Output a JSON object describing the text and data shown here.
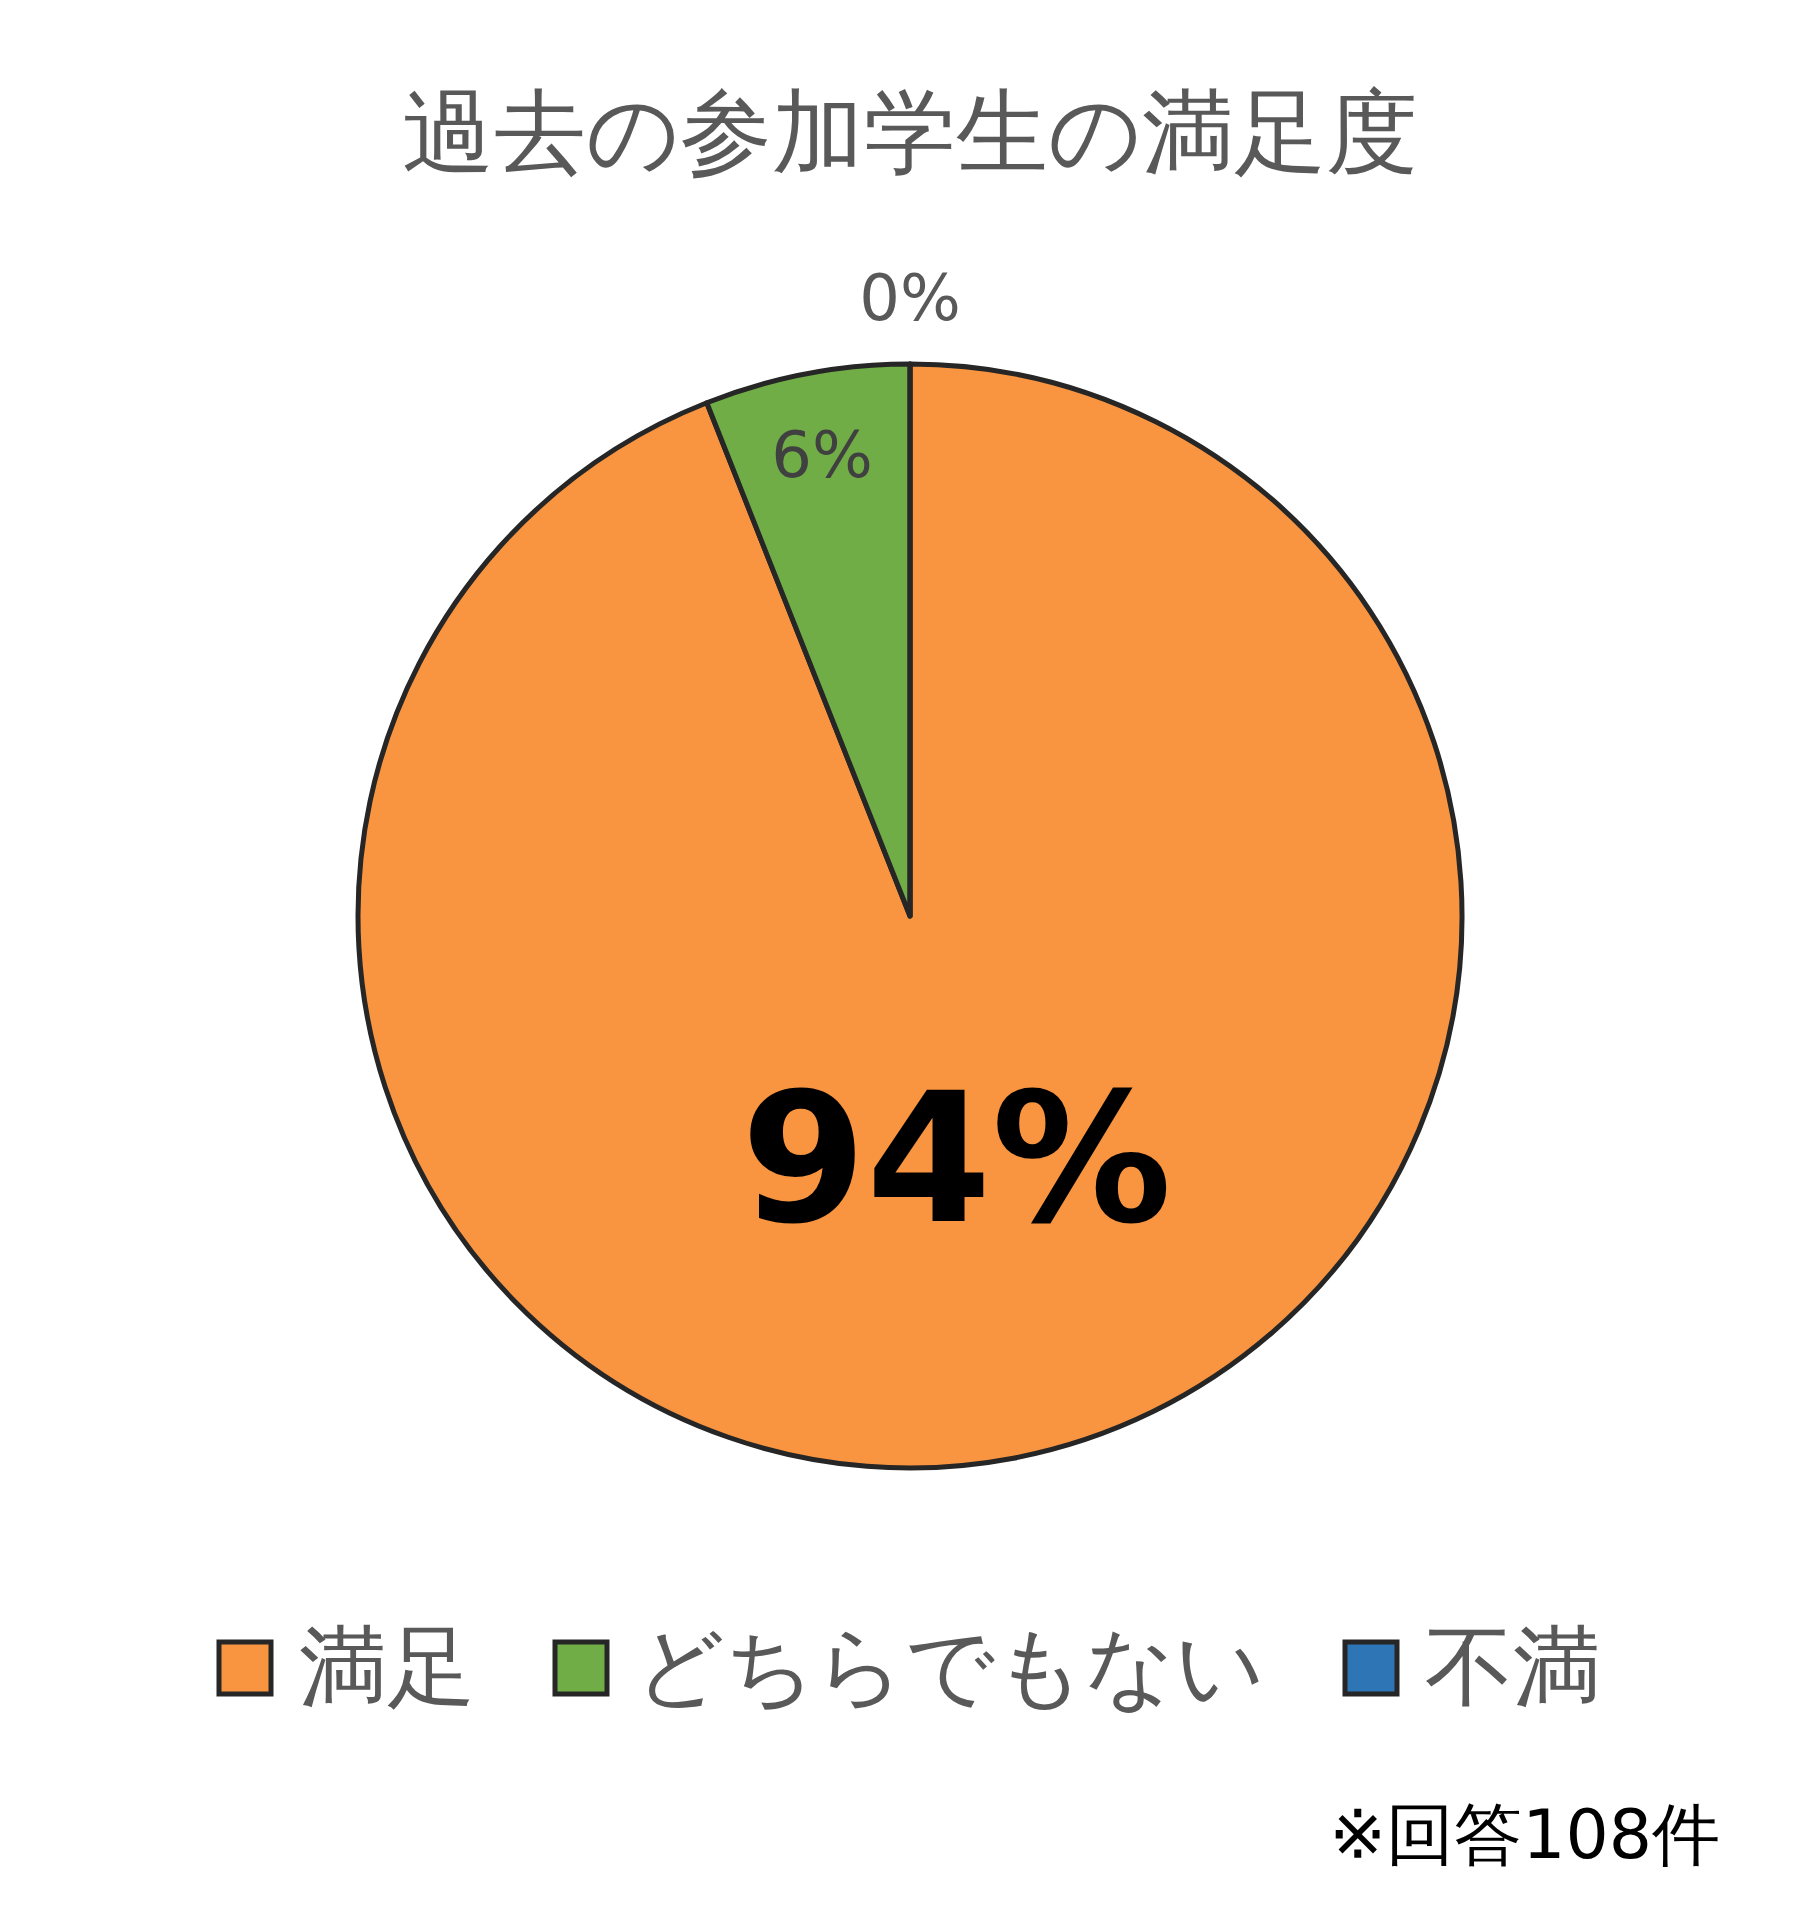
{
  "chart_data": {
    "type": "pie",
    "title": "過去の参加学生の満足度",
    "categories": [
      "満足",
      "どちらでもない",
      "不満"
    ],
    "values": [
      94,
      6,
      0
    ],
    "colors": [
      "#f99540",
      "#70ad47",
      "#2e75b6"
    ],
    "value_labels": [
      "94%",
      "6%",
      "0%"
    ],
    "legend": "bottom",
    "annotations": [
      "※回答108件"
    ]
  }
}
